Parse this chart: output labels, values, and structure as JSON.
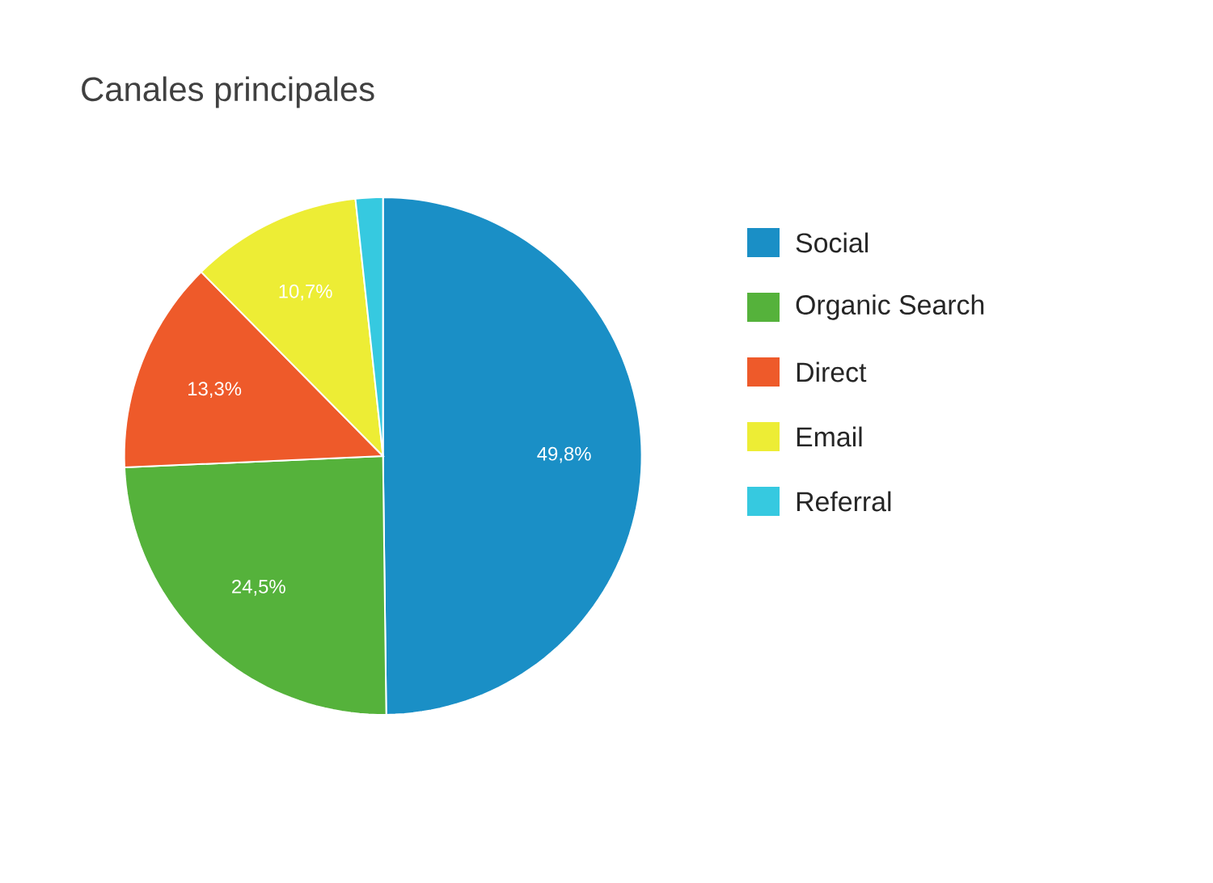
{
  "chart_data": {
    "type": "pie",
    "title": "Canales principales",
    "categories": [
      "Social",
      "Organic Search",
      "Direct",
      "Email",
      "Referral"
    ],
    "values": [
      49.8,
      24.5,
      13.3,
      10.7,
      1.7
    ],
    "value_labels": [
      "49,8%",
      "24,5%",
      "13,3%",
      "10,7%",
      null
    ],
    "colors": [
      "#1a8fc6",
      "#55b23b",
      "#ee5a2a",
      "#eded35",
      "#36c9e0"
    ],
    "legend": "right"
  }
}
